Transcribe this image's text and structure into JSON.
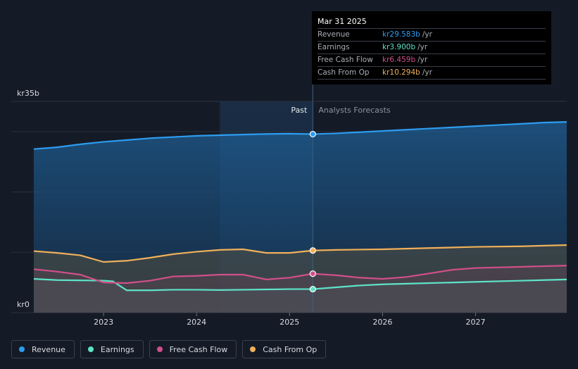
{
  "chart_data": {
    "type": "area",
    "y_axis": {
      "top_label": "kr35b",
      "bottom_label": "kr0",
      "ylim": [
        0,
        35
      ]
    },
    "x_axis": {
      "ticks": [
        "2023",
        "2024",
        "2025",
        "2026",
        "2027"
      ],
      "xlim": [
        2022.25,
        2027.98
      ]
    },
    "past_label": "Past",
    "forecast_label": "Analysts Forecasts",
    "divider_x": 2025.25,
    "past_region_start": 2024.25,
    "series": [
      {
        "name": "Revenue",
        "color": "#2d9cf0",
        "points": [
          [
            2022.25,
            27.1
          ],
          [
            2022.5,
            27.4
          ],
          [
            2022.75,
            27.9
          ],
          [
            2023.0,
            28.3
          ],
          [
            2023.25,
            28.6
          ],
          [
            2023.5,
            28.9
          ],
          [
            2023.75,
            29.1
          ],
          [
            2024.0,
            29.3
          ],
          [
            2024.25,
            29.4
          ],
          [
            2024.5,
            29.5
          ],
          [
            2024.75,
            29.6
          ],
          [
            2025.0,
            29.65
          ],
          [
            2025.25,
            29.583
          ],
          [
            2025.5,
            29.7
          ],
          [
            2025.75,
            29.9
          ],
          [
            2026.0,
            30.1
          ],
          [
            2026.25,
            30.3
          ],
          [
            2026.5,
            30.5
          ],
          [
            2026.75,
            30.7
          ],
          [
            2027.0,
            30.9
          ],
          [
            2027.25,
            31.1
          ],
          [
            2027.5,
            31.3
          ],
          [
            2027.75,
            31.5
          ],
          [
            2027.98,
            31.6
          ]
        ]
      },
      {
        "name": "Earnings",
        "color": "#5ee3c8",
        "points": [
          [
            2022.25,
            5.6
          ],
          [
            2022.5,
            5.4
          ],
          [
            2022.75,
            5.35
          ],
          [
            2023.0,
            5.3
          ],
          [
            2023.1,
            5.2
          ],
          [
            2023.25,
            3.7
          ],
          [
            2023.5,
            3.7
          ],
          [
            2023.75,
            3.8
          ],
          [
            2024.0,
            3.8
          ],
          [
            2024.25,
            3.75
          ],
          [
            2024.5,
            3.8
          ],
          [
            2024.75,
            3.85
          ],
          [
            2025.0,
            3.9
          ],
          [
            2025.25,
            3.9
          ],
          [
            2025.5,
            4.2
          ],
          [
            2025.75,
            4.5
          ],
          [
            2026.0,
            4.7
          ],
          [
            2026.5,
            4.9
          ],
          [
            2027.0,
            5.1
          ],
          [
            2027.5,
            5.3
          ],
          [
            2027.98,
            5.5
          ]
        ]
      },
      {
        "name": "Free Cash Flow",
        "color": "#d14f8a",
        "points": [
          [
            2022.25,
            7.2
          ],
          [
            2022.5,
            6.8
          ],
          [
            2022.75,
            6.3
          ],
          [
            2023.0,
            5.0
          ],
          [
            2023.25,
            4.9
          ],
          [
            2023.5,
            5.3
          ],
          [
            2023.75,
            6.0
          ],
          [
            2024.0,
            6.1
          ],
          [
            2024.25,
            6.3
          ],
          [
            2024.5,
            6.3
          ],
          [
            2024.75,
            5.5
          ],
          [
            2025.0,
            5.8
          ],
          [
            2025.25,
            6.459
          ],
          [
            2025.5,
            6.2
          ],
          [
            2025.75,
            5.8
          ],
          [
            2026.0,
            5.6
          ],
          [
            2026.25,
            5.9
          ],
          [
            2026.5,
            6.5
          ],
          [
            2026.75,
            7.1
          ],
          [
            2027.0,
            7.4
          ],
          [
            2027.5,
            7.6
          ],
          [
            2027.98,
            7.8
          ]
        ]
      },
      {
        "name": "Cash From Op",
        "color": "#f0b05a",
        "points": [
          [
            2022.25,
            10.2
          ],
          [
            2022.5,
            9.9
          ],
          [
            2022.75,
            9.5
          ],
          [
            2023.0,
            8.4
          ],
          [
            2023.25,
            8.6
          ],
          [
            2023.5,
            9.1
          ],
          [
            2023.75,
            9.7
          ],
          [
            2024.0,
            10.1
          ],
          [
            2024.25,
            10.4
          ],
          [
            2024.5,
            10.5
          ],
          [
            2024.75,
            9.9
          ],
          [
            2025.0,
            9.9
          ],
          [
            2025.25,
            10.294
          ],
          [
            2025.5,
            10.4
          ],
          [
            2026.0,
            10.5
          ],
          [
            2026.5,
            10.7
          ],
          [
            2027.0,
            10.9
          ],
          [
            2027.5,
            11.0
          ],
          [
            2027.98,
            11.2
          ]
        ]
      }
    ]
  },
  "tooltip": {
    "date": "Mar 31 2025",
    "rows": [
      {
        "label": "Revenue",
        "value": "kr29.583b",
        "unit": "/yr",
        "color": "#2d9cf0"
      },
      {
        "label": "Earnings",
        "value": "kr3.900b",
        "unit": "/yr",
        "color": "#5ee3c8"
      },
      {
        "label": "Free Cash Flow",
        "value": "kr6.459b",
        "unit": "/yr",
        "color": "#d14f8a"
      },
      {
        "label": "Cash From Op",
        "value": "kr10.294b",
        "unit": "/yr",
        "color": "#f0b05a"
      }
    ]
  },
  "legend": [
    {
      "label": "Revenue",
      "color": "#2d9cf0"
    },
    {
      "label": "Earnings",
      "color": "#5ee3c8"
    },
    {
      "label": "Free Cash Flow",
      "color": "#d14f8a"
    },
    {
      "label": "Cash From Op",
      "color": "#f0b05a"
    }
  ]
}
